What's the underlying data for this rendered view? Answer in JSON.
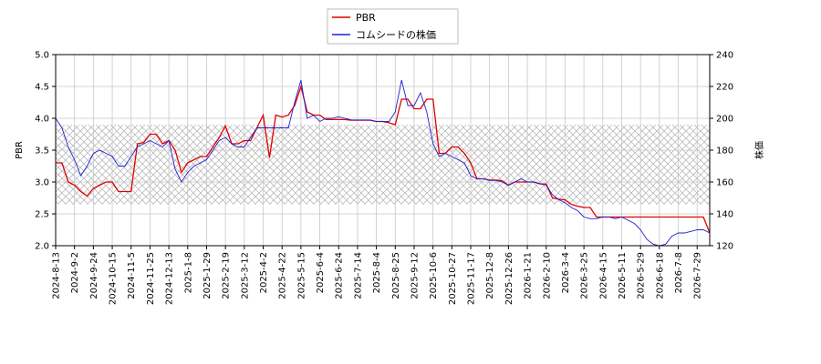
{
  "chart_data": {
    "type": "line",
    "legend": "upper center",
    "grid": true,
    "ylabel": "PBR",
    "y2label": "株価",
    "shaded_range": [
      2.65,
      3.9
    ],
    "categories": [
      "2024-8-13",
      null,
      null,
      "2024-9-2",
      null,
      null,
      "2024-9-24",
      null,
      null,
      "2024-10-15",
      null,
      null,
      "2024-11-5",
      null,
      null,
      "2024-11-25",
      null,
      null,
      "2024-12-13",
      null,
      null,
      "2025-1-8",
      null,
      null,
      "2025-1-29",
      null,
      null,
      "2025-2-19",
      null,
      null,
      "2025-3-12",
      null,
      null,
      "2025-4-2",
      null,
      null,
      "2025-4-22",
      null,
      null,
      "2025-5-15",
      null,
      null,
      "2025-6-4",
      null,
      null,
      "2025-6-24",
      null,
      null,
      "2025-7-14",
      null,
      null,
      "2025-8-4",
      null,
      null,
      "2025-8-25",
      null,
      null,
      "2025-9-12",
      null,
      null,
      "2025-10-6",
      null,
      null,
      "2025-10-27",
      null,
      null,
      "2025-11-17",
      null,
      null,
      "2025-12-8",
      null,
      null,
      "2025-12-26",
      null,
      null,
      "2026-1-21",
      null,
      null,
      "2026-2-10",
      null,
      null,
      "2026-3-4",
      null,
      null,
      "2026-3-25",
      null,
      null,
      "2026-4-15",
      null,
      null,
      "2026-5-11",
      null,
      null,
      "2026-5-29",
      null,
      null,
      "2026-6-18",
      null,
      null,
      "2026-7-8",
      null,
      null,
      "2026-7-29",
      null,
      null
    ],
    "ylim": [
      2.0,
      5.0
    ],
    "yticks": [
      {
        "value": 2.0,
        "label": "2.0"
      },
      {
        "value": 2.5,
        "label": "2.5"
      },
      {
        "value": 3.0,
        "label": "3.0"
      },
      {
        "value": 3.5,
        "label": "3.5"
      },
      {
        "value": 4.0,
        "label": "4.0"
      },
      {
        "value": 4.5,
        "label": "4.5"
      },
      {
        "value": 5.0,
        "label": "5.0"
      }
    ],
    "y2lim": [
      120,
      240
    ],
    "y2ticks": [
      120,
      140,
      160,
      180,
      200,
      220,
      240
    ],
    "series": [
      {
        "name": "PBR",
        "color": "#e00000",
        "values": [
          3.3,
          3.3,
          3.0,
          2.95,
          2.85,
          2.78,
          2.9,
          2.95,
          3.0,
          3.0,
          2.85,
          2.85,
          2.85,
          3.6,
          3.62,
          3.75,
          3.75,
          3.6,
          3.65,
          3.5,
          3.15,
          3.3,
          3.35,
          3.4,
          3.4,
          3.55,
          3.7,
          3.88,
          3.6,
          3.6,
          3.65,
          3.65,
          3.85,
          4.05,
          3.38,
          4.05,
          4.02,
          4.05,
          4.2,
          4.5,
          4.1,
          4.05,
          4.05,
          3.98,
          3.98,
          3.98,
          3.98,
          3.97,
          3.97,
          3.97,
          3.97,
          3.95,
          3.95,
          3.93,
          3.9,
          4.3,
          4.3,
          4.15,
          4.15,
          4.3,
          4.3,
          3.45,
          3.45,
          3.55,
          3.55,
          3.45,
          3.3,
          3.05,
          3.05,
          3.03,
          3.03,
          3.02,
          2.95,
          3.0,
          3.0,
          3.0,
          3.0,
          2.97,
          2.97,
          2.75,
          2.73,
          2.72,
          2.65,
          2.62,
          2.6,
          2.6,
          2.45,
          2.45,
          2.45,
          2.45,
          2.45,
          2.45,
          2.45,
          2.45,
          2.45,
          2.45,
          2.45,
          2.45,
          2.45,
          2.45,
          2.45,
          2.45,
          2.45,
          2.45,
          2.2
        ]
      },
      {
        "name": "コムシードの株価",
        "color": "#2020d0",
        "axis": "y2",
        "values": [
          200,
          194,
          182,
          174,
          164,
          170,
          178,
          180,
          178,
          176,
          170,
          170,
          176,
          182,
          184,
          186,
          184,
          182,
          186,
          168,
          160,
          166,
          170,
          172,
          174,
          180,
          186,
          188,
          184,
          182,
          182,
          188,
          194,
          194,
          194,
          194,
          194,
          194,
          210,
          224,
          200,
          202,
          198,
          200,
          200,
          201,
          200,
          199,
          199,
          199,
          199,
          198,
          198,
          198,
          204,
          224,
          208,
          208,
          216,
          204,
          184,
          176,
          178,
          176,
          174,
          172,
          164,
          162,
          162,
          161,
          161,
          160,
          158,
          160,
          162,
          160,
          160,
          159,
          158,
          152,
          149,
          147,
          144,
          142,
          138,
          137,
          137,
          138,
          138,
          137,
          138,
          136,
          134,
          130,
          124,
          121,
          120,
          121,
          126,
          128,
          128,
          129,
          130,
          130,
          128
        ]
      }
    ]
  }
}
